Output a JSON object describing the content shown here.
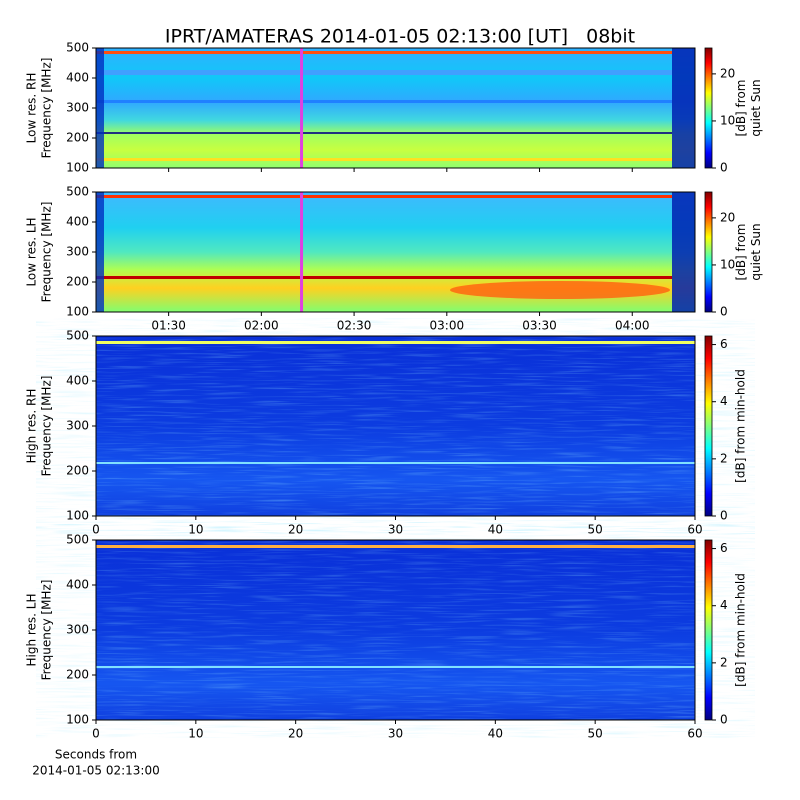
{
  "chart_data": [
    {
      "type": "heatmap",
      "title": "IPRT/AMATERAS 2014-01-05 02:13:00 [UT]   08bit",
      "ylabel": [
        "Low res. RH",
        "Frequency [MHz]"
      ],
      "ylim": [
        100,
        500
      ],
      "yticks": [
        100,
        200,
        300,
        400,
        500
      ],
      "xlim": [
        66.5,
        260.3
      ],
      "xticks": [
        90,
        120,
        150,
        180,
        210,
        240
      ],
      "cursor_x": 133,
      "cursor_color": "#e040e0",
      "colormap": "jet",
      "clim": [
        0,
        25.5
      ],
      "cticks": [
        0,
        10,
        20
      ],
      "clabel": [
        "[dB] from",
        "quiet Sun"
      ]
    },
    {
      "type": "heatmap",
      "ylabel": [
        "Low res. LH",
        "Frequency [MHz]"
      ],
      "ylim": [
        100,
        500
      ],
      "yticks": [
        100,
        200,
        300,
        400,
        500
      ],
      "xlim": [
        66.5,
        260.3
      ],
      "xticks": [
        {
          "value": 90,
          "label": "01:30"
        },
        {
          "value": 120,
          "label": "02:00"
        },
        {
          "value": 150,
          "label": "02:30"
        },
        {
          "value": 180,
          "label": "03:00"
        },
        {
          "value": 210,
          "label": "03:30"
        },
        {
          "value": 240,
          "label": "04:00"
        }
      ],
      "cursor_x": 133,
      "cursor_color": "#e040e0",
      "colormap": "jet",
      "clim": [
        0,
        25.5
      ],
      "cticks": [
        0,
        10,
        20
      ],
      "clabel": [
        "[dB] from",
        "quiet Sun"
      ]
    },
    {
      "type": "heatmap",
      "ylabel": [
        "High res. RH",
        "Frequency [MHz]"
      ],
      "ylim": [
        100,
        500
      ],
      "yticks": [
        100,
        200,
        300,
        400,
        500
      ],
      "xlim": [
        0,
        60
      ],
      "xticks": [
        0,
        10,
        20,
        30,
        40,
        50,
        60
      ],
      "colormap": "jet",
      "clim": [
        0,
        6.3
      ],
      "cticks": [
        0,
        2,
        4,
        6
      ],
      "clabel": [
        "[dB] from min-hold"
      ]
    },
    {
      "type": "heatmap",
      "ylabel": [
        "High res. LH",
        "Frequency [MHz]"
      ],
      "ylim": [
        100,
        500
      ],
      "yticks": [
        100,
        200,
        300,
        400,
        500
      ],
      "xlim": [
        0,
        60
      ],
      "xticks": [
        0,
        10,
        20,
        30,
        40,
        50,
        60
      ],
      "xlabel": [
        "Seconds from",
        "2014-01-05 02:13:00"
      ],
      "colormap": "jet",
      "clim": [
        0,
        6.3
      ],
      "cticks": [
        0,
        2,
        4,
        6
      ],
      "clabel": [
        "[dB] from min-hold"
      ]
    }
  ]
}
